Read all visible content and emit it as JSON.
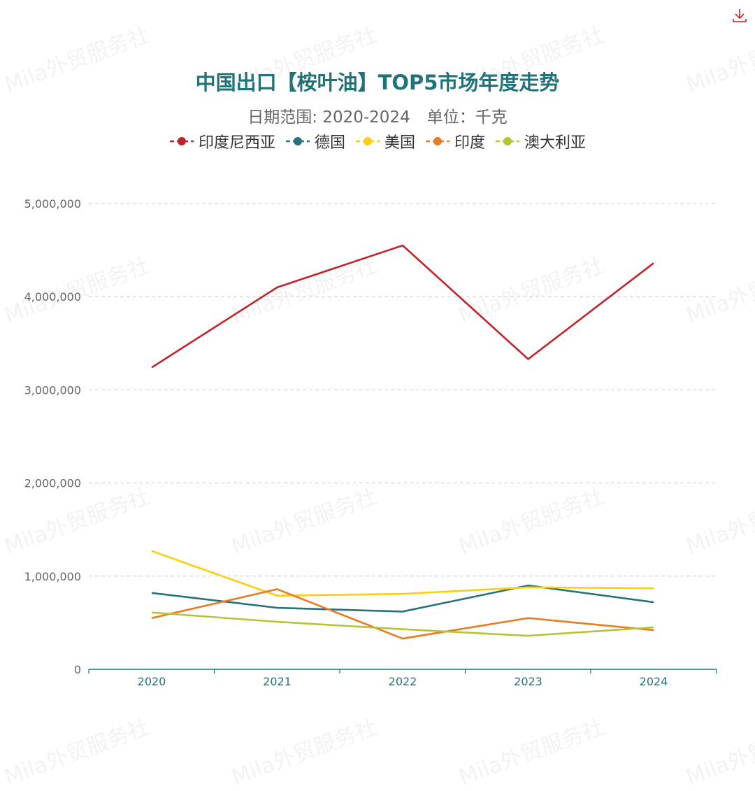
{
  "title": "中国出口【桉叶油】TOP5市场年度走势",
  "subtitle": {
    "date_range": "日期范围: 2020-2024",
    "unit": "单位：千克"
  },
  "watermark": "Mila外贸服务社",
  "toolbar": {
    "download_icon": "download-icon"
  },
  "chart_data": {
    "type": "line",
    "title": "中国出口【桉叶油】TOP5市场年度走势",
    "x": [
      "2020",
      "2021",
      "2022",
      "2023",
      "2024"
    ],
    "ylim": [
      0,
      5000000
    ],
    "yticks": [
      0,
      1000000,
      2000000,
      3000000,
      4000000,
      5000000
    ],
    "ytick_labels": [
      "0",
      "1,000,000",
      "2,000,000",
      "3,000,000",
      "4,000,000",
      "5,000,000"
    ],
    "grid": true,
    "legend_position": "top-center",
    "series": [
      {
        "name": "印度尼西亚",
        "color": "#c1232b",
        "values": [
          3240000,
          4100000,
          4550000,
          3330000,
          4360000
        ]
      },
      {
        "name": "德国",
        "color": "#27727b",
        "values": [
          820000,
          660000,
          620000,
          900000,
          720000
        ]
      },
      {
        "name": "美国",
        "color": "#fcce10",
        "values": [
          1270000,
          790000,
          810000,
          880000,
          870000
        ]
      },
      {
        "name": "印度",
        "color": "#e87c25",
        "values": [
          550000,
          860000,
          330000,
          550000,
          420000
        ]
      },
      {
        "name": "澳大利亚",
        "color": "#b5c334",
        "values": [
          610000,
          510000,
          430000,
          360000,
          450000
        ]
      }
    ]
  }
}
